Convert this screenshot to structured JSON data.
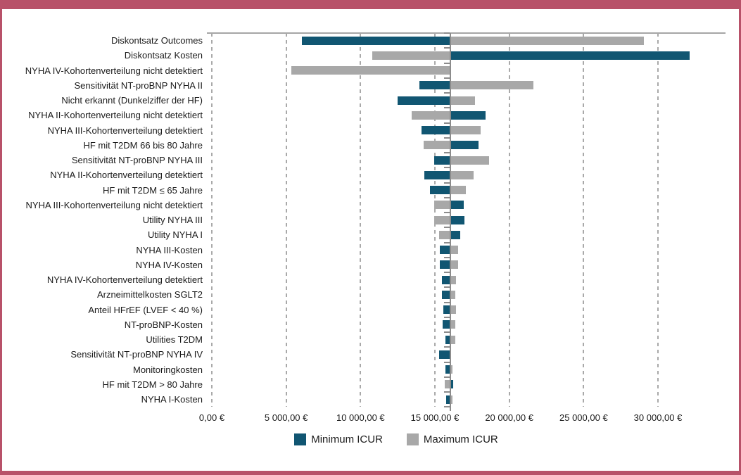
{
  "chart_data": {
    "type": "bar",
    "variant": "tornado",
    "title": "",
    "xlabel": "",
    "ylabel": "",
    "baseline_value": 16030,
    "x_axis": {
      "min": 0,
      "max": 34600,
      "tick_interval": 5000,
      "tick_values": [
        0,
        5000,
        10000,
        15000,
        20000,
        25000,
        30000
      ],
      "tick_labels": [
        "0,00 €",
        "5 000,00 €",
        "10 000,00 €",
        "15 000,00 €",
        "20 000,00 €",
        "25 000,00 €",
        "30 000,00 €"
      ]
    },
    "grid": "vertical-dashed",
    "legend_position": "bottom-center",
    "categories": [
      "Diskontsatz Outcomes",
      "Diskontsatz Kosten",
      "NYHA IV-Kohortenverteilung nicht detektiert",
      "Sensitivität NT-proBNP NYHA II",
      "Nicht erkannt (Dunkelziffer der HF)",
      "NYHA II-Kohortenverteilung nicht detektiert",
      "NYHA III-Kohortenverteilung detektiert",
      "HF mit T2DM 66 bis 80 Jahre",
      "Sensitivität NT-proBNP NYHA III",
      "NYHA II-Kohortenverteilung detektiert",
      "HF mit T2DM ≤ 65 Jahre",
      "NYHA III-Kohortenverteilung nicht detektiert",
      "Utility NYHA III",
      "Utility NYHA I",
      "NYHA III-Kosten",
      "NYHA IV-Kosten",
      "NYHA IV-Kohortenverteilung detektiert",
      "Arzneimittelkosten SGLT2",
      "Anteil HFrEF (LVEF < 40 %)",
      "NT-proBNP-Kosten",
      "Utilities T2DM",
      "Sensitivität NT-proBNP NYHA IV",
      "Monitoringkosten",
      "HF mit T2DM > 80 Jahre",
      "NYHA I-Kosten"
    ],
    "series": [
      {
        "name": "Minimum ICUR",
        "color": "#115672",
        "values": [
          6060,
          32150,
          16030,
          13960,
          12500,
          18420,
          14100,
          17950,
          14950,
          14290,
          14650,
          16930,
          16970,
          16710,
          15330,
          15330,
          15490,
          15480,
          15560,
          15540,
          15710,
          15300,
          15710,
          16220,
          15760
        ]
      },
      {
        "name": "Maximum ICUR",
        "color": "#a8a8a8",
        "values": [
          29060,
          10800,
          5340,
          21630,
          17680,
          13420,
          18080,
          14260,
          18630,
          17600,
          17080,
          14950,
          14960,
          15270,
          16580,
          16580,
          16420,
          16380,
          16400,
          16350,
          16370,
          16030,
          16190,
          15680,
          16160
        ]
      }
    ]
  },
  "legend": {
    "min_label": "Minimum ICUR",
    "max_label": "Maximum ICUR"
  },
  "colors": {
    "frame": "#b85169",
    "bar_min": "#115672",
    "bar_max": "#a8a8a8",
    "gridline": "#a9a9a9",
    "axis": "#8c8c8c",
    "text": "#1a1a1a"
  }
}
